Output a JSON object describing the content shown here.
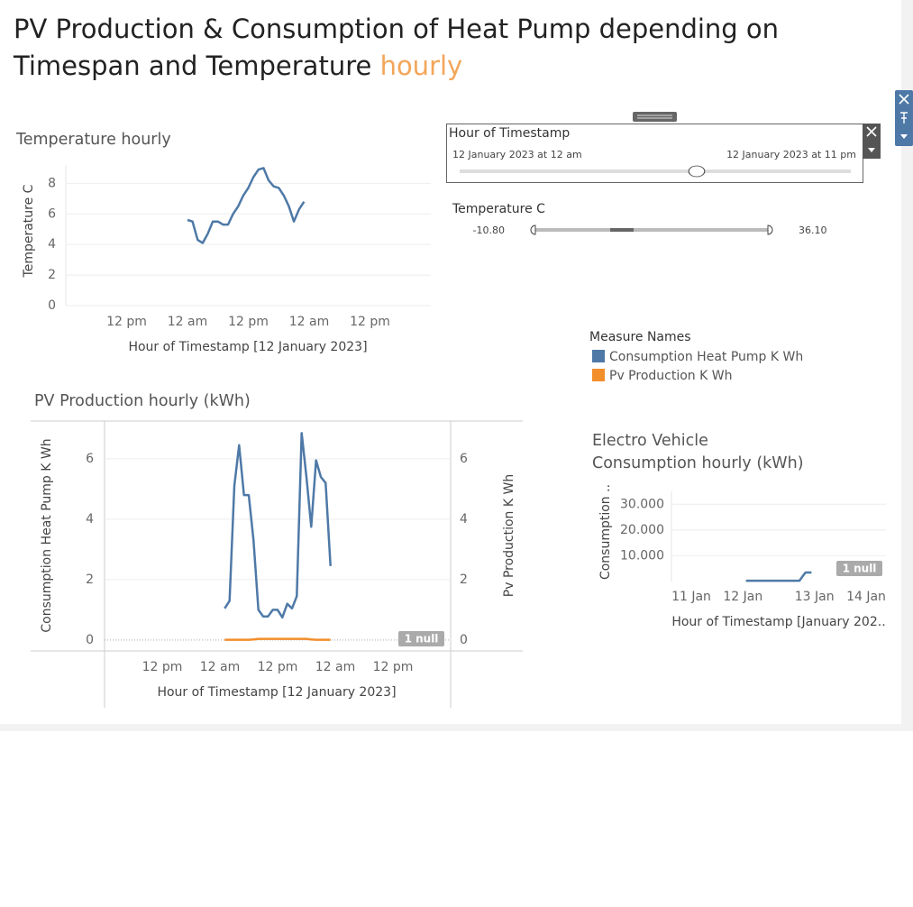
{
  "title": "PV Production & Consumption of Heat Pump depending on Timespan and Temperature",
  "title_highlight": "hourly",
  "filters": [
    {
      "name": "Hour of Timestamp",
      "start": "12 January 2023 at 12 am",
      "end": "12 January 2023 at 11 pm"
    },
    {
      "name": "Temperature C",
      "start": "-10.80",
      "end": "36.10"
    }
  ],
  "chart_data": [
    {
      "type": "line",
      "title": "Temperature hourly",
      "x_label": "Hour of Timestamp [12 January 2023]",
      "y_label": "Temperature C",
      "color": "#4e79a7",
      "x": [
        "2023-01-12T00:00",
        "2023-01-12T01:00",
        "2023-01-12T02:00",
        "2023-01-12T03:00",
        "2023-01-12T04:00",
        "2023-01-12T05:00",
        "2023-01-12T06:00",
        "2023-01-12T07:00",
        "2023-01-12T08:00",
        "2023-01-12T09:00",
        "2023-01-12T10:00",
        "2023-01-12T11:00",
        "2023-01-12T12:00",
        "2023-01-12T13:00",
        "2023-01-12T14:00",
        "2023-01-12T15:00",
        "2023-01-12T16:00",
        "2023-01-12T17:00",
        "2023-01-12T18:00",
        "2023-01-12T19:00",
        "2023-01-12T20:00",
        "2023-01-12T21:00",
        "2023-01-12T22:00",
        "2023-01-12T23:00"
      ],
      "values": [
        5.6,
        5.5,
        4.3,
        4.1,
        4.7,
        5.5,
        5.5,
        5.3,
        5.3,
        6.0,
        6.5,
        7.2,
        7.7,
        8.4,
        8.9,
        9.0,
        8.2,
        7.8,
        7.7,
        7.2,
        6.5,
        5.5,
        6.3,
        6.8
      ],
      "xlim": [
        "2023-01-11T00:00",
        "2023-01-14T00:00"
      ],
      "xticks": [
        {
          "value": "2023-01-11T12:00",
          "label": "12 pm"
        },
        {
          "value": "2023-01-12T00:00",
          "label": "12 am"
        },
        {
          "value": "2023-01-12T12:00",
          "label": "12 pm"
        },
        {
          "value": "2023-01-13T00:00",
          "label": "12 am"
        },
        {
          "value": "2023-01-13T12:00",
          "label": "12 pm"
        }
      ],
      "ylim": [
        0,
        9.2
      ],
      "yticks": [
        0,
        2,
        4,
        6,
        8
      ],
      "grid": true
    },
    {
      "type": "line",
      "title": "PV Production hourly (kWh)",
      "x_label": "Hour of Timestamp [12 January 2023]",
      "y_label": "Consumption Heat Pump K Wh",
      "y2_label": "Pv Production K Wh",
      "legend_title": "Measure Names",
      "null_label": "1 null",
      "x": [
        "2023-01-12T00:00",
        "2023-01-12T01:00",
        "2023-01-12T02:00",
        "2023-01-12T03:00",
        "2023-01-12T04:00",
        "2023-01-12T05:00",
        "2023-01-12T06:00",
        "2023-01-12T07:00",
        "2023-01-12T08:00",
        "2023-01-12T09:00",
        "2023-01-12T10:00",
        "2023-01-12T11:00",
        "2023-01-12T12:00",
        "2023-01-12T13:00",
        "2023-01-12T14:00",
        "2023-01-12T15:00",
        "2023-01-12T16:00",
        "2023-01-12T17:00",
        "2023-01-12T18:00",
        "2023-01-12T19:00",
        "2023-01-12T20:00",
        "2023-01-12T21:00",
        "2023-01-12T22:00",
        "2023-01-12T23:00"
      ],
      "series": [
        {
          "name": "Consumption Heat Pump K Wh",
          "color": "#4e79a7",
          "values": [
            null,
            1.05,
            1.3,
            5.1,
            6.45,
            4.8,
            4.8,
            3.3,
            1.0,
            0.78,
            0.78,
            1.0,
            1.0,
            0.75,
            1.2,
            1.05,
            1.45,
            6.85,
            5.4,
            3.75,
            5.95,
            5.4,
            5.2,
            2.45
          ]
        },
        {
          "name": "Pv Production K Wh",
          "color": "#f28e2b",
          "axis": "y2",
          "values": [
            null,
            0.01,
            0.01,
            0.01,
            0.01,
            0.01,
            0.01,
            0.02,
            0.04,
            0.04,
            0.04,
            0.04,
            0.04,
            0.04,
            0.04,
            0.04,
            0.04,
            0.04,
            0.04,
            0.02,
            0.01,
            0.01,
            0.01,
            0.01
          ]
        }
      ],
      "xlim": [
        "2023-01-11T00:00",
        "2023-01-14T00:00"
      ],
      "xticks": [
        {
          "value": "2023-01-11T12:00",
          "label": "12 pm"
        },
        {
          "value": "2023-01-12T00:00",
          "label": "12 am"
        },
        {
          "value": "2023-01-12T12:00",
          "label": "12 pm"
        },
        {
          "value": "2023-01-13T00:00",
          "label": "12 am"
        },
        {
          "value": "2023-01-13T12:00",
          "label": "12 pm"
        }
      ],
      "ylim": [
        -0.36,
        7.25
      ],
      "yticks": [
        0,
        2,
        4,
        6
      ],
      "y2lim": [
        -0.36,
        7.25
      ],
      "y2ticks": [
        0,
        2,
        4,
        6
      ],
      "grid": true
    },
    {
      "type": "line",
      "title": "Electro Vehicle Consumption hourly (kWh)",
      "x_label": "Hour of Timestamp [January 202..",
      "y_label": "Consumption ..",
      "color": "#4e79a7",
      "null_label": "1 null",
      "x": [
        "2023-01-12T00:00",
        "2023-01-12T01:00",
        "2023-01-12T02:00",
        "2023-01-12T03:00",
        "2023-01-12T04:00",
        "2023-01-12T05:00",
        "2023-01-12T06:00",
        "2023-01-12T07:00",
        "2023-01-12T08:00",
        "2023-01-12T09:00",
        "2023-01-12T10:00",
        "2023-01-12T11:00",
        "2023-01-12T12:00",
        "2023-01-12T13:00",
        "2023-01-12T14:00",
        "2023-01-12T15:00",
        "2023-01-12T16:00",
        "2023-01-12T17:00",
        "2023-01-12T18:00",
        "2023-01-12T19:00",
        "2023-01-12T20:00",
        "2023-01-12T21:00",
        "2023-01-12T22:00",
        "2023-01-12T23:00"
      ],
      "values": [
        null,
        300,
        300,
        300,
        300,
        300,
        300,
        300,
        300,
        300,
        300,
        300,
        300,
        300,
        300,
        300,
        300,
        300,
        300,
        300,
        2000,
        3500,
        3500,
        3500
      ],
      "xlim": [
        "2023-01-11T00:00",
        "2023-01-14T00:00"
      ],
      "xticks": [
        {
          "value": "2023-01-11T00:00",
          "label": "11 Jan"
        },
        {
          "value": "2023-01-12T00:00",
          "label": "12 Jan"
        },
        {
          "value": "2023-01-13T00:00",
          "label": "13 Jan"
        },
        {
          "value": "2023-01-14T00:00",
          "label": "14 Jan"
        }
      ],
      "ylim": [
        0,
        35000
      ],
      "yticks": [
        {
          "value": 10000,
          "label": "10.000"
        },
        {
          "value": 20000,
          "label": "20.000"
        },
        {
          "value": 30000,
          "label": "30.000"
        }
      ],
      "grid": true
    }
  ]
}
